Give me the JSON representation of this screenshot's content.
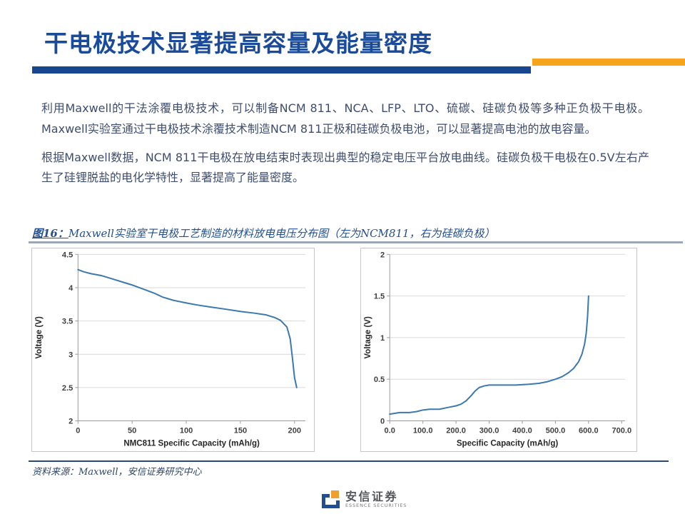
{
  "slide": {
    "title": "干电极技术显著提高容量及能量密度",
    "title_color": "#1A4B9B",
    "accent_blue": "#17458F",
    "accent_orange": "#F7A41D",
    "paragraphs": [
      "利用Maxwell的干法涂覆电极技术，可以制备NCM 811、NCA、LFP、LTO、硫碳、硅碳负极等多种正负极干电极。Maxwell实验室通过干电极技术涂覆技术制造NCM 811正极和硅碳负极电池，可以显著提高电池的放电容量。",
      "根据Maxwell数据，NCM 811干电极在放电结束时表现出典型的稳定电压平台放电曲线。硅碳负极干电极在0.5V左右产生了硅锂脱盐的电化学特性，显著提高了能量密度。"
    ],
    "figure_caption_prefix": "图16：",
    "figure_caption": "Maxwell实验室干电极工艺制造的材料放电电压分布图（左为NCM811，右为硅碳负极）",
    "source": "资料来源：Maxwell，安信证券研究中心",
    "logo": {
      "name": "安信证券",
      "subtitle": "ESSENCE SECURITIES",
      "mark_blue": "#1D4F91",
      "mark_orange": "#F0A02C"
    }
  },
  "chart_data": [
    {
      "type": "line",
      "title": "",
      "xlabel": "NMC811 Specific Capacity (mAh/g)",
      "ylabel": "Voltage (V)",
      "xlim": [
        0,
        210
      ],
      "ylim": [
        2,
        4.5
      ],
      "grid": true,
      "legend": "none",
      "line_color": "#3C79AE",
      "x_ticks": [
        {
          "v": 0,
          "label": "0"
        },
        {
          "v": 50,
          "label": "50"
        },
        {
          "v": 100,
          "label": "100"
        },
        {
          "v": 150,
          "label": "150"
        },
        {
          "v": 200,
          "label": "200"
        }
      ],
      "y_ticks": [
        {
          "v": 2,
          "label": "2"
        },
        {
          "v": 2.5,
          "label": "2.5"
        },
        {
          "v": 3,
          "label": "3"
        },
        {
          "v": 3.5,
          "label": "3.5"
        },
        {
          "v": 4,
          "label": "4"
        },
        {
          "v": 4.5,
          "label": "4.5"
        }
      ],
      "series": [
        {
          "name": "NCM811 dry electrode discharge",
          "points": [
            [
              0,
              4.27
            ],
            [
              5,
              4.24
            ],
            [
              12,
              4.21
            ],
            [
              22,
              4.18
            ],
            [
              32,
              4.13
            ],
            [
              42,
              4.08
            ],
            [
              50,
              4.04
            ],
            [
              60,
              3.98
            ],
            [
              70,
              3.92
            ],
            [
              78,
              3.86
            ],
            [
              88,
              3.81
            ],
            [
              100,
              3.77
            ],
            [
              110,
              3.74
            ],
            [
              122,
              3.71
            ],
            [
              135,
              3.68
            ],
            [
              151,
              3.64
            ],
            [
              162,
              3.62
            ],
            [
              174,
              3.59
            ],
            [
              182,
              3.55
            ],
            [
              187,
              3.51
            ],
            [
              193,
              3.41
            ],
            [
              196,
              3.23
            ],
            [
              198,
              2.95
            ],
            [
              200,
              2.65
            ],
            [
              202,
              2.5
            ]
          ]
        }
      ]
    },
    {
      "type": "line",
      "title": "",
      "xlabel": "Specific Capacity (mAh/g)",
      "ylabel": "Voltage (V)",
      "xlim": [
        0,
        710
      ],
      "ylim": [
        0,
        2
      ],
      "grid": true,
      "legend": "none",
      "line_color": "#3C79AE",
      "x_ticks": [
        {
          "v": 0,
          "label": "0.0"
        },
        {
          "v": 100,
          "label": "100.0"
        },
        {
          "v": 200,
          "label": "200.0"
        },
        {
          "v": 300,
          "label": "300.0"
        },
        {
          "v": 400,
          "label": "400.0"
        },
        {
          "v": 500,
          "label": "500.0"
        },
        {
          "v": 600,
          "label": "600.0"
        },
        {
          "v": 700,
          "label": "700.0"
        }
      ],
      "y_ticks": [
        {
          "v": 0,
          "label": "0"
        },
        {
          "v": 0.5,
          "label": "0.5"
        },
        {
          "v": 1,
          "label": "1"
        },
        {
          "v": 1.5,
          "label": "1.5"
        },
        {
          "v": 2,
          "label": "2"
        }
      ],
      "series": [
        {
          "name": "Silicon-carbon anode dry electrode discharge",
          "points": [
            [
              0,
              0.08
            ],
            [
              30,
              0.1
            ],
            [
              60,
              0.1
            ],
            [
              80,
              0.11
            ],
            [
              100,
              0.13
            ],
            [
              120,
              0.14
            ],
            [
              150,
              0.14
            ],
            [
              175,
              0.16
            ],
            [
              200,
              0.18
            ],
            [
              215,
              0.2
            ],
            [
              230,
              0.24
            ],
            [
              245,
              0.3
            ],
            [
              258,
              0.36
            ],
            [
              270,
              0.4
            ],
            [
              285,
              0.42
            ],
            [
              300,
              0.43
            ],
            [
              340,
              0.43
            ],
            [
              380,
              0.43
            ],
            [
              420,
              0.44
            ],
            [
              450,
              0.45
            ],
            [
              475,
              0.47
            ],
            [
              500,
              0.5
            ],
            [
              520,
              0.53
            ],
            [
              540,
              0.58
            ],
            [
              555,
              0.63
            ],
            [
              570,
              0.71
            ],
            [
              580,
              0.8
            ],
            [
              588,
              0.92
            ],
            [
              593,
              1.05
            ],
            [
              597,
              1.25
            ],
            [
              600,
              1.5
            ]
          ]
        }
      ]
    }
  ]
}
